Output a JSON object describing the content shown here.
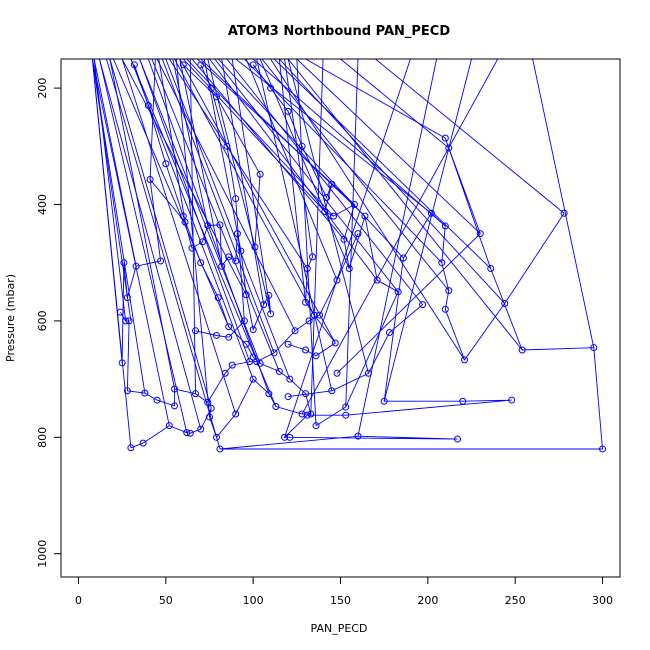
{
  "chart_data": {
    "type": "line",
    "title": "ATOM3 Northbound PAN_PECD",
    "xlabel": "PAN_PECD",
    "ylabel": "Pressure (mbar)",
    "xlim": [
      -10,
      310
    ],
    "ylim": [
      1040,
      150
    ],
    "y_axis_inverted": true,
    "x_ticks": [
      0,
      50,
      100,
      150,
      200,
      250,
      300
    ],
    "y_ticks": [
      200,
      400,
      600,
      800,
      1000
    ],
    "grid": false,
    "legend": "none",
    "colors": {
      "series": "#0000ff",
      "axis": "#000000",
      "background": "#ffffff"
    },
    "series": [
      {
        "points": [
          {
            "x": 278,
            "y": 415
          },
          {
            "x": 244,
            "y": 570
          },
          {
            "x": 221,
            "y": 667
          },
          {
            "x": 210,
            "y": 580
          },
          {
            "x": 212,
            "y": 548
          },
          {
            "x": 208,
            "y": 500
          },
          {
            "x": 210,
            "y": 437
          },
          {
            "x": 202,
            "y": 415
          },
          {
            "x": 186,
            "y": 492
          },
          {
            "x": 175,
            "y": 738
          },
          {
            "x": 220,
            "y": 738
          },
          {
            "x": 248,
            "y": 736
          },
          {
            "x": 153,
            "y": 762
          },
          {
            "x": 131,
            "y": 762
          },
          {
            "x": 118,
            "y": 800
          },
          {
            "x": 121,
            "y": 800
          },
          {
            "x": 217,
            "y": 803
          },
          {
            "x": 160,
            "y": 798
          },
          {
            "x": 81,
            "y": 820
          },
          {
            "x": 300,
            "y": 820
          },
          {
            "x": 295,
            "y": 646
          },
          {
            "x": 254,
            "y": 650
          },
          {
            "x": 236,
            "y": 510
          },
          {
            "x": 210,
            "y": 286
          },
          {
            "x": 212,
            "y": 303
          },
          {
            "x": 230,
            "y": 450
          },
          {
            "x": 148,
            "y": 690
          }
        ]
      },
      {
        "points": [
          {
            "x": 136,
            "y": 780
          },
          {
            "x": 153,
            "y": 748
          },
          {
            "x": 183,
            "y": 550
          },
          {
            "x": 171,
            "y": 530
          },
          {
            "x": 164,
            "y": 420
          },
          {
            "x": 155,
            "y": 510
          },
          {
            "x": 152,
            "y": 460
          },
          {
            "x": 158,
            "y": 400
          },
          {
            "x": 146,
            "y": 420
          },
          {
            "x": 141,
            "y": 412
          },
          {
            "x": 145,
            "y": 365
          },
          {
            "x": 142,
            "y": 388
          },
          {
            "x": 128,
            "y": 300
          },
          {
            "x": 120,
            "y": 240
          },
          {
            "x": 110,
            "y": 200
          },
          {
            "x": 100,
            "y": 160
          }
        ]
      },
      {
        "points": [
          {
            "x": 30,
            "y": 818
          },
          {
            "x": 37,
            "y": 810
          },
          {
            "x": 52,
            "y": 780
          },
          {
            "x": 62,
            "y": 792
          },
          {
            "x": 64,
            "y": 793
          },
          {
            "x": 70,
            "y": 786
          },
          {
            "x": 76,
            "y": 750
          },
          {
            "x": 75,
            "y": 765
          },
          {
            "x": 79,
            "y": 800
          },
          {
            "x": 90,
            "y": 760
          },
          {
            "x": 100,
            "y": 700
          },
          {
            "x": 109,
            "y": 725
          },
          {
            "x": 113,
            "y": 747
          },
          {
            "x": 128,
            "y": 760
          },
          {
            "x": 133,
            "y": 760
          },
          {
            "x": 130,
            "y": 725
          },
          {
            "x": 121,
            "y": 700
          },
          {
            "x": 115,
            "y": 687
          },
          {
            "x": 104,
            "y": 673
          },
          {
            "x": 100,
            "y": 662
          },
          {
            "x": 96,
            "y": 640
          },
          {
            "x": 86,
            "y": 610
          },
          {
            "x": 80,
            "y": 560
          },
          {
            "x": 70,
            "y": 500
          },
          {
            "x": 60,
            "y": 420
          },
          {
            "x": 50,
            "y": 330
          },
          {
            "x": 40,
            "y": 230
          },
          {
            "x": 32,
            "y": 160
          }
        ]
      },
      {
        "points": [
          {
            "x": 24,
            "y": 585
          },
          {
            "x": 27,
            "y": 600
          },
          {
            "x": 29,
            "y": 600
          },
          {
            "x": 28,
            "y": 720
          },
          {
            "x": 38,
            "y": 724
          },
          {
            "x": 45,
            "y": 736
          },
          {
            "x": 55,
            "y": 746
          },
          {
            "x": 55,
            "y": 717
          },
          {
            "x": 67,
            "y": 725
          },
          {
            "x": 74,
            "y": 740
          },
          {
            "x": 84,
            "y": 690
          },
          {
            "x": 88,
            "y": 676
          },
          {
            "x": 98,
            "y": 670
          },
          {
            "x": 102,
            "y": 670
          },
          {
            "x": 112,
            "y": 655
          },
          {
            "x": 124,
            "y": 617
          },
          {
            "x": 132,
            "y": 600
          },
          {
            "x": 138,
            "y": 590
          },
          {
            "x": 148,
            "y": 530
          },
          {
            "x": 160,
            "y": 450
          }
        ]
      },
      {
        "points": [
          {
            "x": 25,
            "y": 672
          },
          {
            "x": 26,
            "y": 500
          },
          {
            "x": 28,
            "y": 560
          },
          {
            "x": 33,
            "y": 506
          },
          {
            "x": 47,
            "y": 497
          },
          {
            "x": 41,
            "y": 357
          },
          {
            "x": 61,
            "y": 430
          },
          {
            "x": 65,
            "y": 475
          },
          {
            "x": 71,
            "y": 464
          },
          {
            "x": 74,
            "y": 436
          },
          {
            "x": 81,
            "y": 435
          },
          {
            "x": 82,
            "y": 506
          },
          {
            "x": 86,
            "y": 490
          },
          {
            "x": 90,
            "y": 497
          },
          {
            "x": 91,
            "y": 450
          },
          {
            "x": 93,
            "y": 480
          },
          {
            "x": 96,
            "y": 555
          },
          {
            "x": 100,
            "y": 615
          },
          {
            "x": 106,
            "y": 572
          },
          {
            "x": 109,
            "y": 556
          },
          {
            "x": 110,
            "y": 588
          },
          {
            "x": 101,
            "y": 473
          },
          {
            "x": 104,
            "y": 348
          },
          {
            "x": 79,
            "y": 215
          },
          {
            "x": 60,
            "y": 160
          }
        ]
      },
      {
        "points": [
          {
            "x": 67,
            "y": 617
          },
          {
            "x": 79,
            "y": 625
          },
          {
            "x": 86,
            "y": 628
          },
          {
            "x": 95,
            "y": 600
          },
          {
            "x": 90,
            "y": 390
          },
          {
            "x": 85,
            "y": 300
          },
          {
            "x": 76,
            "y": 200
          },
          {
            "x": 70,
            "y": 160
          }
        ]
      },
      {
        "points": [
          {
            "x": 134,
            "y": 490
          },
          {
            "x": 131,
            "y": 510
          },
          {
            "x": 130,
            "y": 568
          },
          {
            "x": 135,
            "y": 590
          },
          {
            "x": 147,
            "y": 638
          },
          {
            "x": 136,
            "y": 660
          },
          {
            "x": 130,
            "y": 650
          },
          {
            "x": 120,
            "y": 640
          }
        ]
      },
      {
        "points": [
          {
            "x": 197,
            "y": 572
          },
          {
            "x": 178,
            "y": 620
          },
          {
            "x": 166,
            "y": 690
          },
          {
            "x": 145,
            "y": 720
          },
          {
            "x": 120,
            "y": 730
          }
        ]
      }
    ],
    "background_lines": [
      [
        {
          "x": 8,
          "y": 150
        },
        {
          "x": 30,
          "y": 600
        }
      ],
      [
        {
          "x": 8,
          "y": 150
        },
        {
          "x": 25,
          "y": 672
        }
      ],
      [
        {
          "x": 8,
          "y": 150
        },
        {
          "x": 38,
          "y": 724
        }
      ],
      [
        {
          "x": 8,
          "y": 150
        },
        {
          "x": 52,
          "y": 780
        }
      ],
      [
        {
          "x": 8,
          "y": 150
        },
        {
          "x": 30,
          "y": 818
        }
      ],
      [
        {
          "x": 12,
          "y": 150
        },
        {
          "x": 62,
          "y": 792
        }
      ],
      [
        {
          "x": 12,
          "y": 150
        },
        {
          "x": 70,
          "y": 786
        }
      ],
      [
        {
          "x": 16,
          "y": 150
        },
        {
          "x": 81,
          "y": 820
        }
      ],
      [
        {
          "x": 18,
          "y": 150
        },
        {
          "x": 76,
          "y": 750
        }
      ],
      [
        {
          "x": 18,
          "y": 150
        },
        {
          "x": 55,
          "y": 717
        }
      ],
      [
        {
          "x": 20,
          "y": 150
        },
        {
          "x": 86,
          "y": 610
        }
      ],
      [
        {
          "x": 9,
          "y": 150
        },
        {
          "x": 33,
          "y": 506
        }
      ],
      [
        {
          "x": 9,
          "y": 150
        },
        {
          "x": 27,
          "y": 600
        }
      ],
      [
        {
          "x": 25,
          "y": 150
        },
        {
          "x": 90,
          "y": 760
        }
      ],
      [
        {
          "x": 25,
          "y": 150
        },
        {
          "x": 96,
          "y": 555
        }
      ],
      [
        {
          "x": 30,
          "y": 150
        },
        {
          "x": 100,
          "y": 700
        }
      ],
      [
        {
          "x": 30,
          "y": 150
        },
        {
          "x": 113,
          "y": 747
        }
      ],
      [
        {
          "x": 35,
          "y": 150
        },
        {
          "x": 98,
          "y": 670
        }
      ],
      [
        {
          "x": 35,
          "y": 150
        },
        {
          "x": 104,
          "y": 673
        }
      ],
      [
        {
          "x": 40,
          "y": 150
        },
        {
          "x": 109,
          "y": 725
        }
      ],
      [
        {
          "x": 42,
          "y": 150
        },
        {
          "x": 115,
          "y": 687
        }
      ],
      [
        {
          "x": 45,
          "y": 150
        },
        {
          "x": 124,
          "y": 617
        }
      ],
      [
        {
          "x": 48,
          "y": 150
        },
        {
          "x": 112,
          "y": 655
        }
      ],
      [
        {
          "x": 50,
          "y": 150
        },
        {
          "x": 121,
          "y": 700
        }
      ],
      [
        {
          "x": 52,
          "y": 150
        },
        {
          "x": 131,
          "y": 510
        }
      ],
      [
        {
          "x": 55,
          "y": 150
        },
        {
          "x": 135,
          "y": 590
        }
      ],
      [
        {
          "x": 58,
          "y": 150
        },
        {
          "x": 147,
          "y": 638
        }
      ],
      [
        {
          "x": 60,
          "y": 150
        },
        {
          "x": 141,
          "y": 412
        }
      ],
      [
        {
          "x": 62,
          "y": 150
        },
        {
          "x": 146,
          "y": 420
        }
      ],
      [
        {
          "x": 65,
          "y": 150
        },
        {
          "x": 152,
          "y": 460
        }
      ],
      [
        {
          "x": 68,
          "y": 150
        },
        {
          "x": 158,
          "y": 400
        }
      ],
      [
        {
          "x": 70,
          "y": 150
        },
        {
          "x": 164,
          "y": 420
        }
      ],
      [
        {
          "x": 75,
          "y": 150
        },
        {
          "x": 171,
          "y": 530
        }
      ],
      [
        {
          "x": 78,
          "y": 150
        },
        {
          "x": 183,
          "y": 550
        }
      ],
      [
        {
          "x": 80,
          "y": 150
        },
        {
          "x": 186,
          "y": 492
        }
      ],
      [
        {
          "x": 85,
          "y": 150
        },
        {
          "x": 197,
          "y": 572
        }
      ],
      [
        {
          "x": 90,
          "y": 150
        },
        {
          "x": 202,
          "y": 415
        }
      ],
      [
        {
          "x": 95,
          "y": 150
        },
        {
          "x": 208,
          "y": 500
        }
      ],
      [
        {
          "x": 100,
          "y": 150
        },
        {
          "x": 210,
          "y": 437
        }
      ],
      [
        {
          "x": 105,
          "y": 150
        },
        {
          "x": 212,
          "y": 548
        }
      ],
      [
        {
          "x": 110,
          "y": 150
        },
        {
          "x": 221,
          "y": 667
        }
      ],
      [
        {
          "x": 112,
          "y": 150
        },
        {
          "x": 236,
          "y": 510
        }
      ],
      [
        {
          "x": 115,
          "y": 150
        },
        {
          "x": 244,
          "y": 570
        }
      ],
      [
        {
          "x": 120,
          "y": 150
        },
        {
          "x": 254,
          "y": 650
        }
      ],
      [
        {
          "x": 125,
          "y": 150
        },
        {
          "x": 230,
          "y": 450
        }
      ],
      [
        {
          "x": 130,
          "y": 150
        },
        {
          "x": 210,
          "y": 286
        }
      ],
      [
        {
          "x": 150,
          "y": 150
        },
        {
          "x": 212,
          "y": 303
        }
      ],
      [
        {
          "x": 170,
          "y": 150
        },
        {
          "x": 278,
          "y": 415
        }
      ],
      [
        {
          "x": 56,
          "y": 150
        },
        {
          "x": 75,
          "y": 765
        }
      ],
      [
        {
          "x": 64,
          "y": 150
        },
        {
          "x": 67,
          "y": 725
        }
      ],
      [
        {
          "x": 44,
          "y": 150
        },
        {
          "x": 41,
          "y": 357
        }
      ],
      [
        {
          "x": 46,
          "y": 150
        },
        {
          "x": 61,
          "y": 430
        }
      ],
      [
        {
          "x": 54,
          "y": 150
        },
        {
          "x": 74,
          "y": 436
        }
      ],
      [
        {
          "x": 58,
          "y": 150
        },
        {
          "x": 82,
          "y": 506
        }
      ],
      [
        {
          "x": 72,
          "y": 150
        },
        {
          "x": 93,
          "y": 480
        }
      ],
      [
        {
          "x": 74,
          "y": 150
        },
        {
          "x": 101,
          "y": 473
        }
      ],
      [
        {
          "x": 82,
          "y": 150
        },
        {
          "x": 106,
          "y": 572
        }
      ],
      [
        {
          "x": 88,
          "y": 150
        },
        {
          "x": 110,
          "y": 588
        }
      ],
      [
        {
          "x": 96,
          "y": 150
        },
        {
          "x": 148,
          "y": 530
        }
      ],
      [
        {
          "x": 104,
          "y": 150
        },
        {
          "x": 155,
          "y": 510
        }
      ],
      [
        {
          "x": 115,
          "y": 150
        },
        {
          "x": 130,
          "y": 568
        }
      ],
      [
        {
          "x": 118,
          "y": 150
        },
        {
          "x": 134,
          "y": 490
        }
      ],
      [
        {
          "x": 125,
          "y": 150
        },
        {
          "x": 136,
          "y": 780
        }
      ],
      [
        {
          "x": 140,
          "y": 150
        },
        {
          "x": 133,
          "y": 760
        }
      ],
      [
        {
          "x": 160,
          "y": 150
        },
        {
          "x": 153,
          "y": 748
        }
      ],
      [
        {
          "x": 190,
          "y": 150
        },
        {
          "x": 118,
          "y": 800
        }
      ],
      [
        {
          "x": 205,
          "y": 150
        },
        {
          "x": 160,
          "y": 798
        }
      ],
      [
        {
          "x": 225,
          "y": 150
        },
        {
          "x": 175,
          "y": 738
        }
      ],
      [
        {
          "x": 240,
          "y": 150
        },
        {
          "x": 128,
          "y": 760
        }
      ],
      [
        {
          "x": 260,
          "y": 150
        },
        {
          "x": 295,
          "y": 646
        }
      ],
      [
        {
          "x": 120,
          "y": 150
        },
        {
          "x": 166,
          "y": 690
        }
      ],
      [
        {
          "x": 102,
          "y": 150
        },
        {
          "x": 145,
          "y": 720
        }
      ]
    ]
  }
}
